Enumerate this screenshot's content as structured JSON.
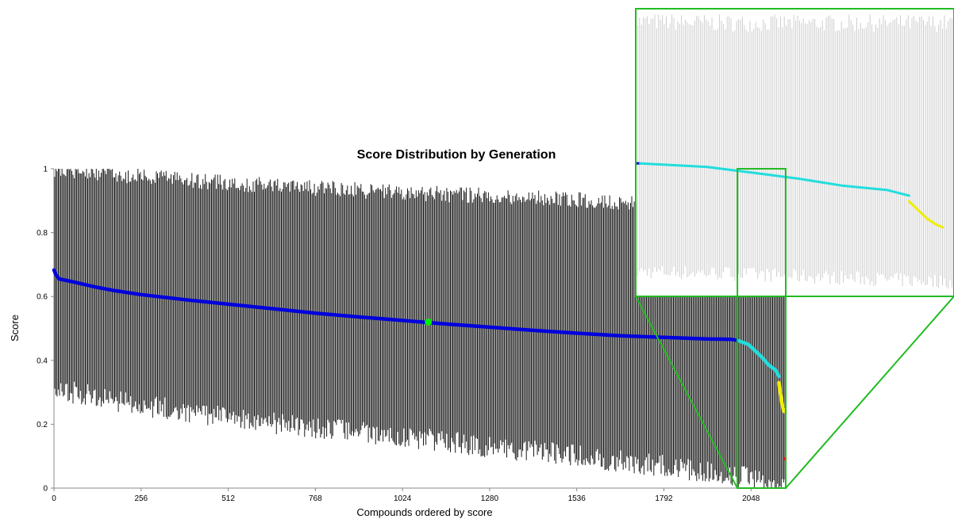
{
  "chart_data": {
    "type": "scatter",
    "title": "Score Distribution by Generation",
    "xlabel": "Compounds ordered by score",
    "ylabel": "Score",
    "x_ticks": [
      0,
      256,
      512,
      768,
      1024,
      1280,
      1536,
      1792,
      2048
    ],
    "y_ticks": [
      0,
      0.2,
      0.4,
      0.6,
      0.8,
      1
    ],
    "xlim": [
      0,
      2150
    ],
    "ylim": [
      0,
      1
    ],
    "grid": false,
    "legend": "none",
    "range_bars": {
      "color": "#1a1a1a",
      "upper_x": [
        0,
        256,
        512,
        768,
        1024,
        1280,
        1536,
        1792,
        2048,
        2150
      ],
      "upper_y": [
        1.0,
        0.975,
        0.955,
        0.94,
        0.925,
        0.915,
        0.905,
        0.885,
        0.85,
        0.85
      ],
      "lower_x": [
        0,
        256,
        512,
        768,
        1024,
        1280,
        1536,
        1792,
        2048,
        2150
      ],
      "lower_y": [
        0.31,
        0.26,
        0.22,
        0.19,
        0.16,
        0.13,
        0.1,
        0.07,
        0.03,
        0.0
      ]
    },
    "series": [
      {
        "color": "#0000dd",
        "x": [
          0,
          5,
          15,
          60,
          120,
          180,
          256,
          384,
          512,
          640,
          768,
          896,
          1024,
          1152,
          1280,
          1408,
          1536,
          1664,
          1792,
          1920,
          1990,
          2010
        ],
        "y": [
          0.683,
          0.67,
          0.655,
          0.645,
          0.63,
          0.618,
          0.606,
          0.59,
          0.576,
          0.562,
          0.548,
          0.536,
          0.525,
          0.514,
          0.504,
          0.494,
          0.485,
          0.477,
          0.472,
          0.467,
          0.466,
          0.462
        ]
      },
      {
        "color": "#22dddd",
        "x": [
          2010,
          2040,
          2060,
          2080,
          2100,
          2120,
          2130
        ],
        "y": [
          0.462,
          0.45,
          0.43,
          0.41,
          0.385,
          0.37,
          0.35
        ]
      },
      {
        "color": "#eeee00",
        "x": [
          2130,
          2134,
          2138,
          2142,
          2145
        ],
        "y": [
          0.33,
          0.3,
          0.27,
          0.25,
          0.24
        ]
      },
      {
        "color": "#ff0000",
        "x": [
          2148
        ],
        "y": [
          0.092
        ]
      }
    ],
    "highlight_point": {
      "color": "#00ee00",
      "x": 1100,
      "y": 0.52
    },
    "zoom": {
      "source_x": [
        2008,
        2150
      ],
      "source_y": [
        0.0,
        1.0
      ],
      "border_color": "#22bb22",
      "bar_color": "#cccccc"
    }
  }
}
